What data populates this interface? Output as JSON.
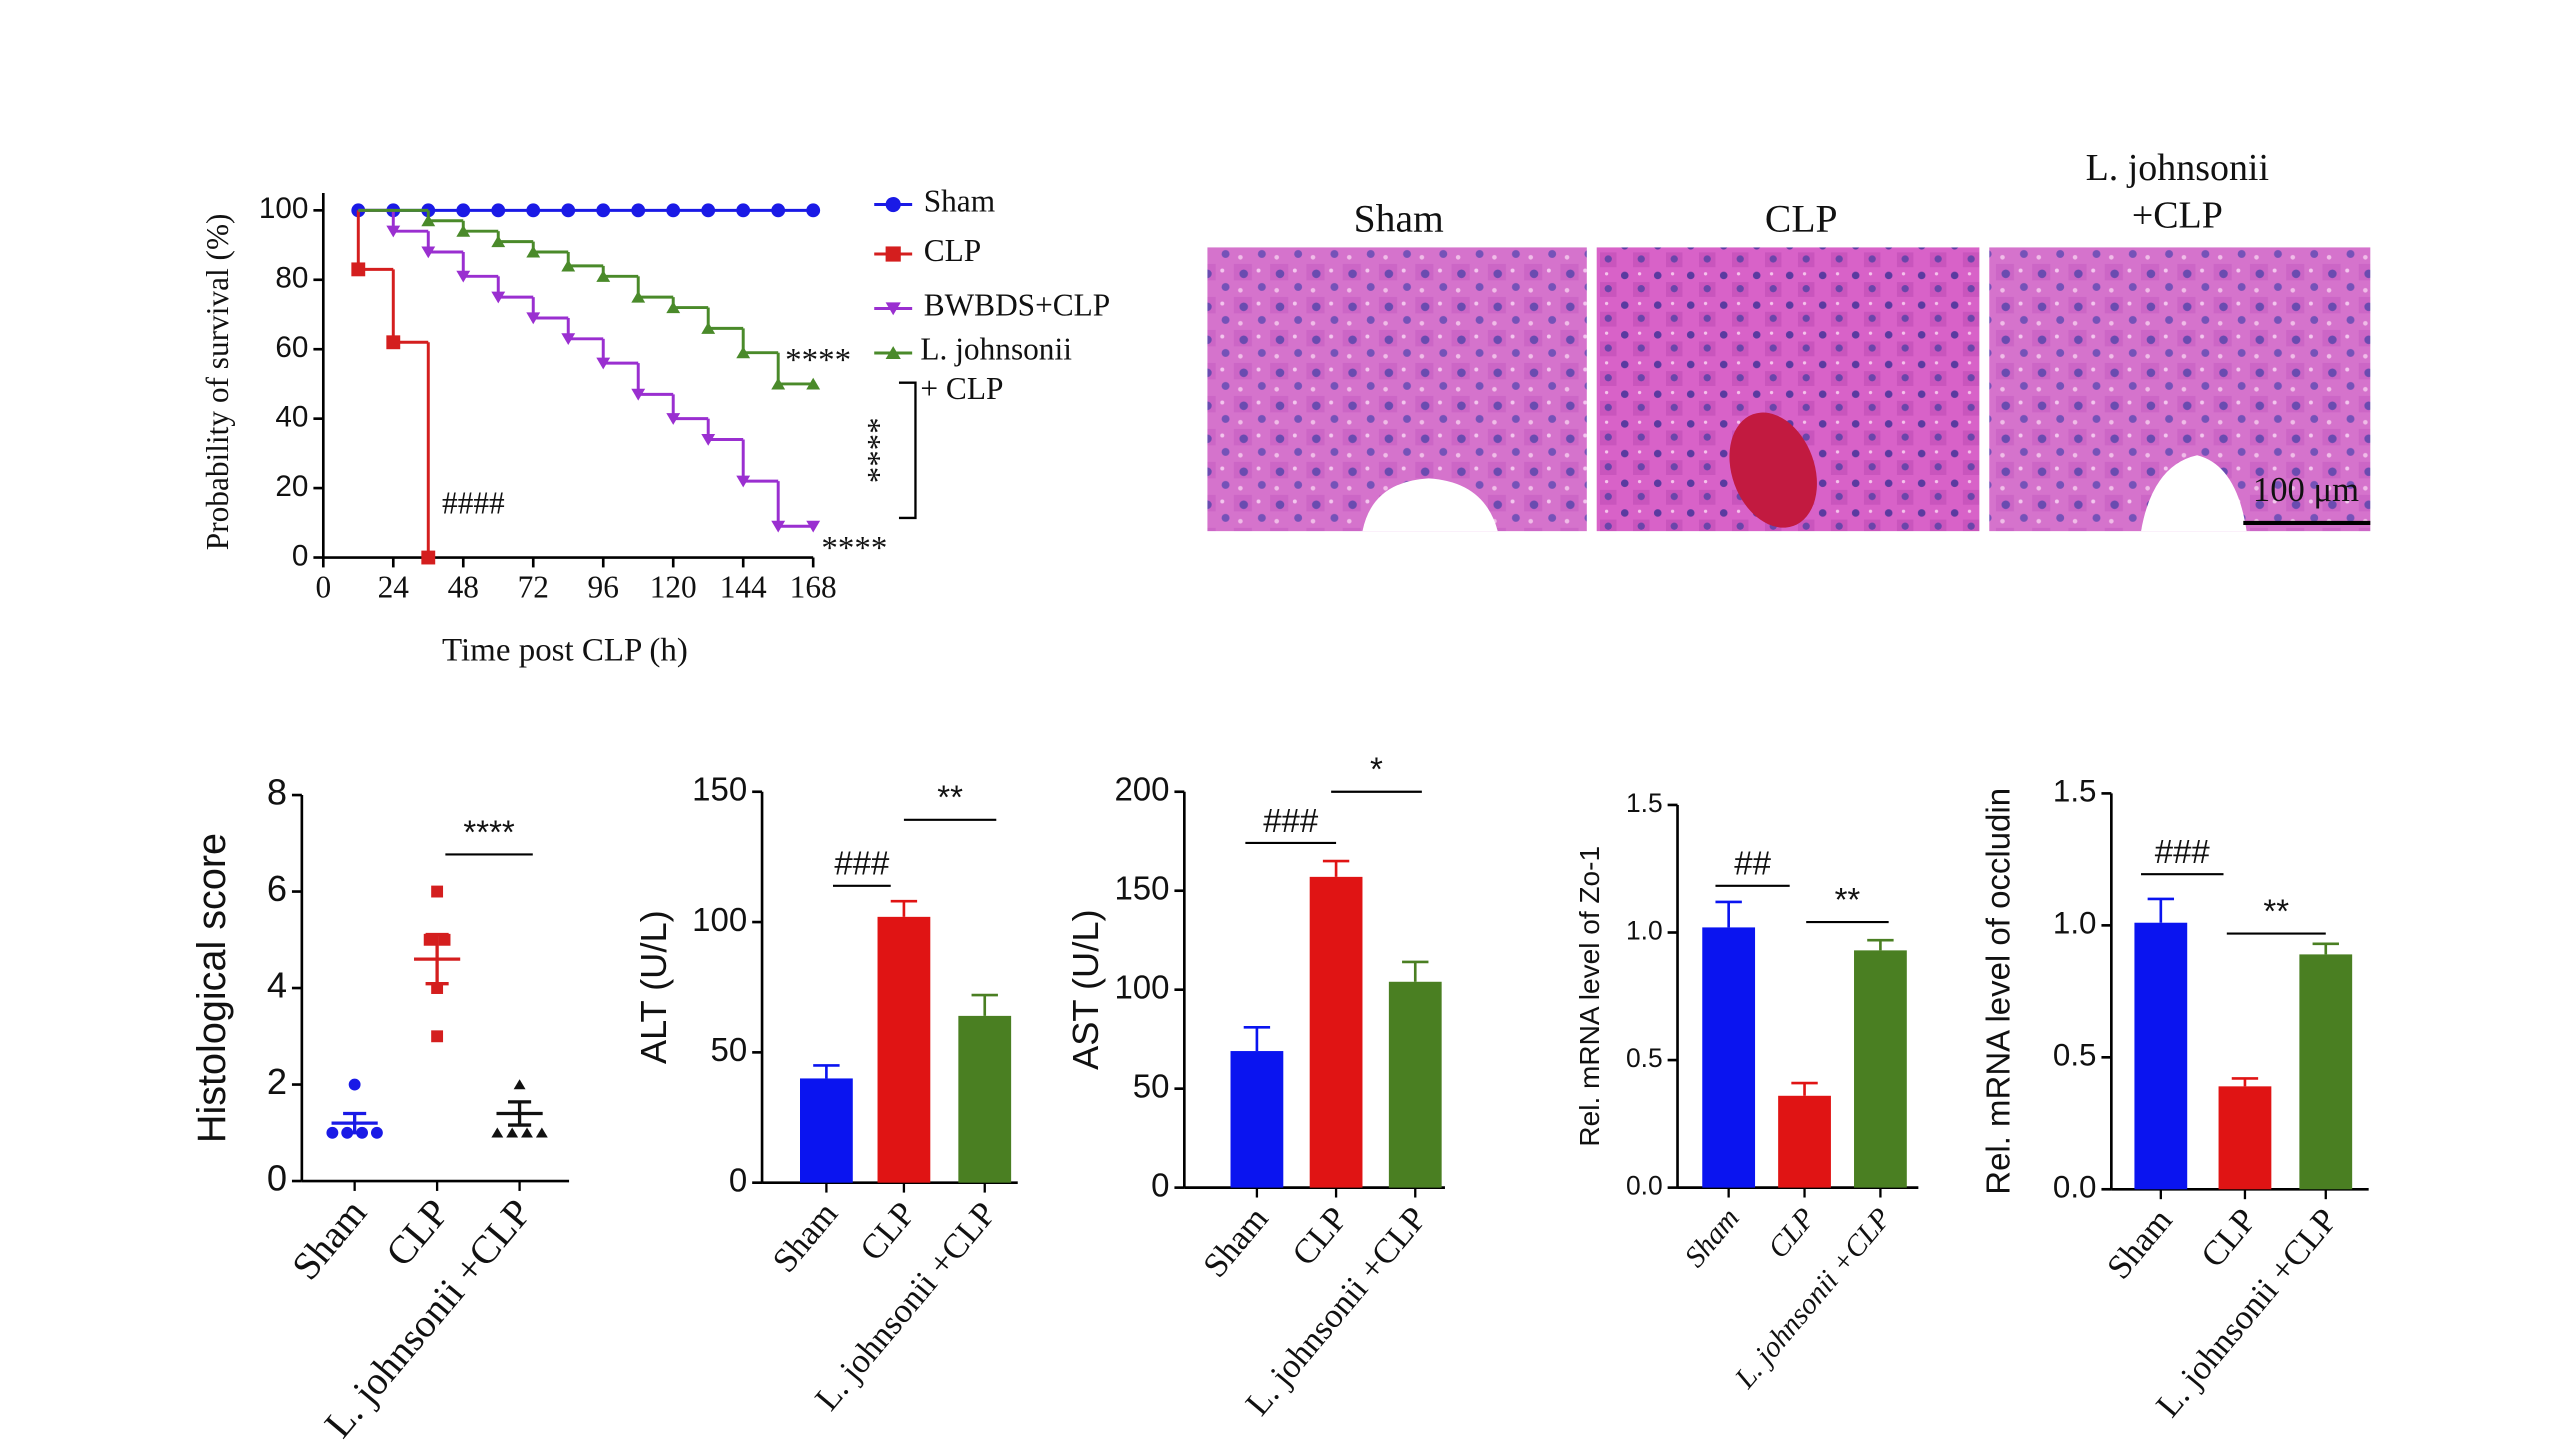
{
  "chart_data": [
    {
      "type": "survival",
      "ylabel": "Probability of survival (%)",
      "xlabel": "Time post CLP (h)",
      "xlim": [
        0,
        168
      ],
      "xticks": [
        0,
        24,
        48,
        72,
        96,
        120,
        144,
        168
      ],
      "ylim": [
        0,
        105
      ],
      "yticks": [
        0,
        20,
        40,
        60,
        80,
        100
      ],
      "series": [
        {
          "name": "Sham",
          "color": "#1a1ae6",
          "marker": "circle",
          "x": [
            12,
            24,
            36,
            48,
            60,
            72,
            84,
            96,
            108,
            120,
            132,
            144,
            156,
            168
          ],
          "values": [
            100,
            100,
            100,
            100,
            100,
            100,
            100,
            100,
            100,
            100,
            100,
            100,
            100,
            100
          ]
        },
        {
          "name": "CLP",
          "color": "#d41e1e",
          "marker": "square",
          "x": [
            12,
            24,
            36
          ],
          "values": [
            83,
            62,
            0
          ]
        },
        {
          "name": "BWBDS+CLP",
          "color": "#9a2fd0",
          "marker": "triangle-down",
          "x": [
            24,
            36,
            48,
            60,
            72,
            84,
            96,
            108,
            120,
            132,
            144,
            156,
            168
          ],
          "values": [
            94,
            88,
            81,
            75,
            69,
            63,
            56,
            47,
            40,
            34,
            22,
            9,
            9
          ]
        },
        {
          "name": "L. johnsonii + CLP",
          "color": "#4a8a2a",
          "marker": "triangle-up",
          "x": [
            36,
            48,
            60,
            72,
            84,
            96,
            108,
            120,
            132,
            144,
            156,
            168
          ],
          "values": [
            97,
            94,
            91,
            88,
            84,
            81,
            75,
            72,
            66,
            59,
            50,
            50
          ]
        }
      ],
      "annotations": [
        "****",
        "****",
        "****",
        "####"
      ]
    },
    {
      "type": "dot",
      "ylabel": "Histological score",
      "categories": [
        "Sham",
        "CLP",
        "L. johnsonii +CLP"
      ],
      "colors": [
        "#1a1ae6",
        "#d41e1e",
        "#111111"
      ],
      "markers": [
        "circle",
        "square",
        "triangle-up"
      ],
      "points": [
        [
          2,
          1,
          1,
          1,
          1
        ],
        [
          6,
          5,
          5,
          4,
          3
        ],
        [
          2,
          1,
          1,
          1,
          1
        ]
      ],
      "mean": [
        1.2,
        4.6,
        1.4
      ],
      "sem": [
        0.2,
        0.51,
        0.24
      ],
      "ylim": [
        0,
        8
      ],
      "yticks": [
        0,
        2,
        4,
        6,
        8
      ],
      "annotations": [
        "****"
      ]
    },
    {
      "type": "bar",
      "ylabel": "ALT (U/L)",
      "categories": [
        "Sham",
        "CLP",
        "L. johnsonii +CLP"
      ],
      "colors": [
        "#0a14f0",
        "#e01414",
        "#4a7f22"
      ],
      "values": [
        40,
        102,
        64
      ],
      "errors": [
        5,
        6,
        8
      ],
      "ylim": [
        0,
        150
      ],
      "yticks": [
        0,
        50,
        100,
        150
      ],
      "annotations": [
        "###",
        "**"
      ]
    },
    {
      "type": "bar",
      "ylabel": "AST (U/L)",
      "categories": [
        "Sham",
        "CLP",
        "L. johnsonii +CLP"
      ],
      "colors": [
        "#0a14f0",
        "#e01414",
        "#4a7f22"
      ],
      "values": [
        69,
        157,
        104
      ],
      "errors": [
        12,
        8,
        10
      ],
      "ylim": [
        0,
        200
      ],
      "yticks": [
        0,
        50,
        100,
        150,
        200
      ],
      "annotations": [
        "###",
        "*"
      ]
    },
    {
      "type": "bar",
      "ylabel": "Rel. mRNA level of Zo-1",
      "category_style": "italic",
      "categories": [
        "Sham",
        "CLP",
        "L. johnsonii +CLP"
      ],
      "colors": [
        "#0a14f0",
        "#e01414",
        "#4a7f22"
      ],
      "values": [
        1.02,
        0.36,
        0.93
      ],
      "errors": [
        0.1,
        0.05,
        0.04
      ],
      "ylim": [
        0,
        1.5
      ],
      "yticks": [
        {
          "value": 0,
          "label": "0.0"
        },
        0.5,
        {
          "value": 1,
          "label": "1.0"
        },
        1.5
      ],
      "annotations": [
        "##",
        "**"
      ]
    },
    {
      "type": "bar",
      "ylabel": "Rel. mRNA level of occludin",
      "categories": [
        "Sham",
        "CLP",
        "L. johnsonii +CLP"
      ],
      "colors": [
        "#0a14f0",
        "#e01414",
        "#4a7f22"
      ],
      "values": [
        1.01,
        0.39,
        0.89
      ],
      "errors": [
        0.09,
        0.03,
        0.04
      ],
      "ylim": [
        0,
        1.5
      ],
      "yticks": [
        {
          "value": 0,
          "label": "0.0"
        },
        0.5,
        {
          "value": 1,
          "label": "1.0"
        },
        1.5
      ],
      "annotations": [
        "###",
        "**"
      ]
    }
  ],
  "histology": {
    "panels": [
      "Sham",
      "CLP",
      "L. johnsonii +CLP"
    ],
    "scale_bar": "100 μm"
  }
}
